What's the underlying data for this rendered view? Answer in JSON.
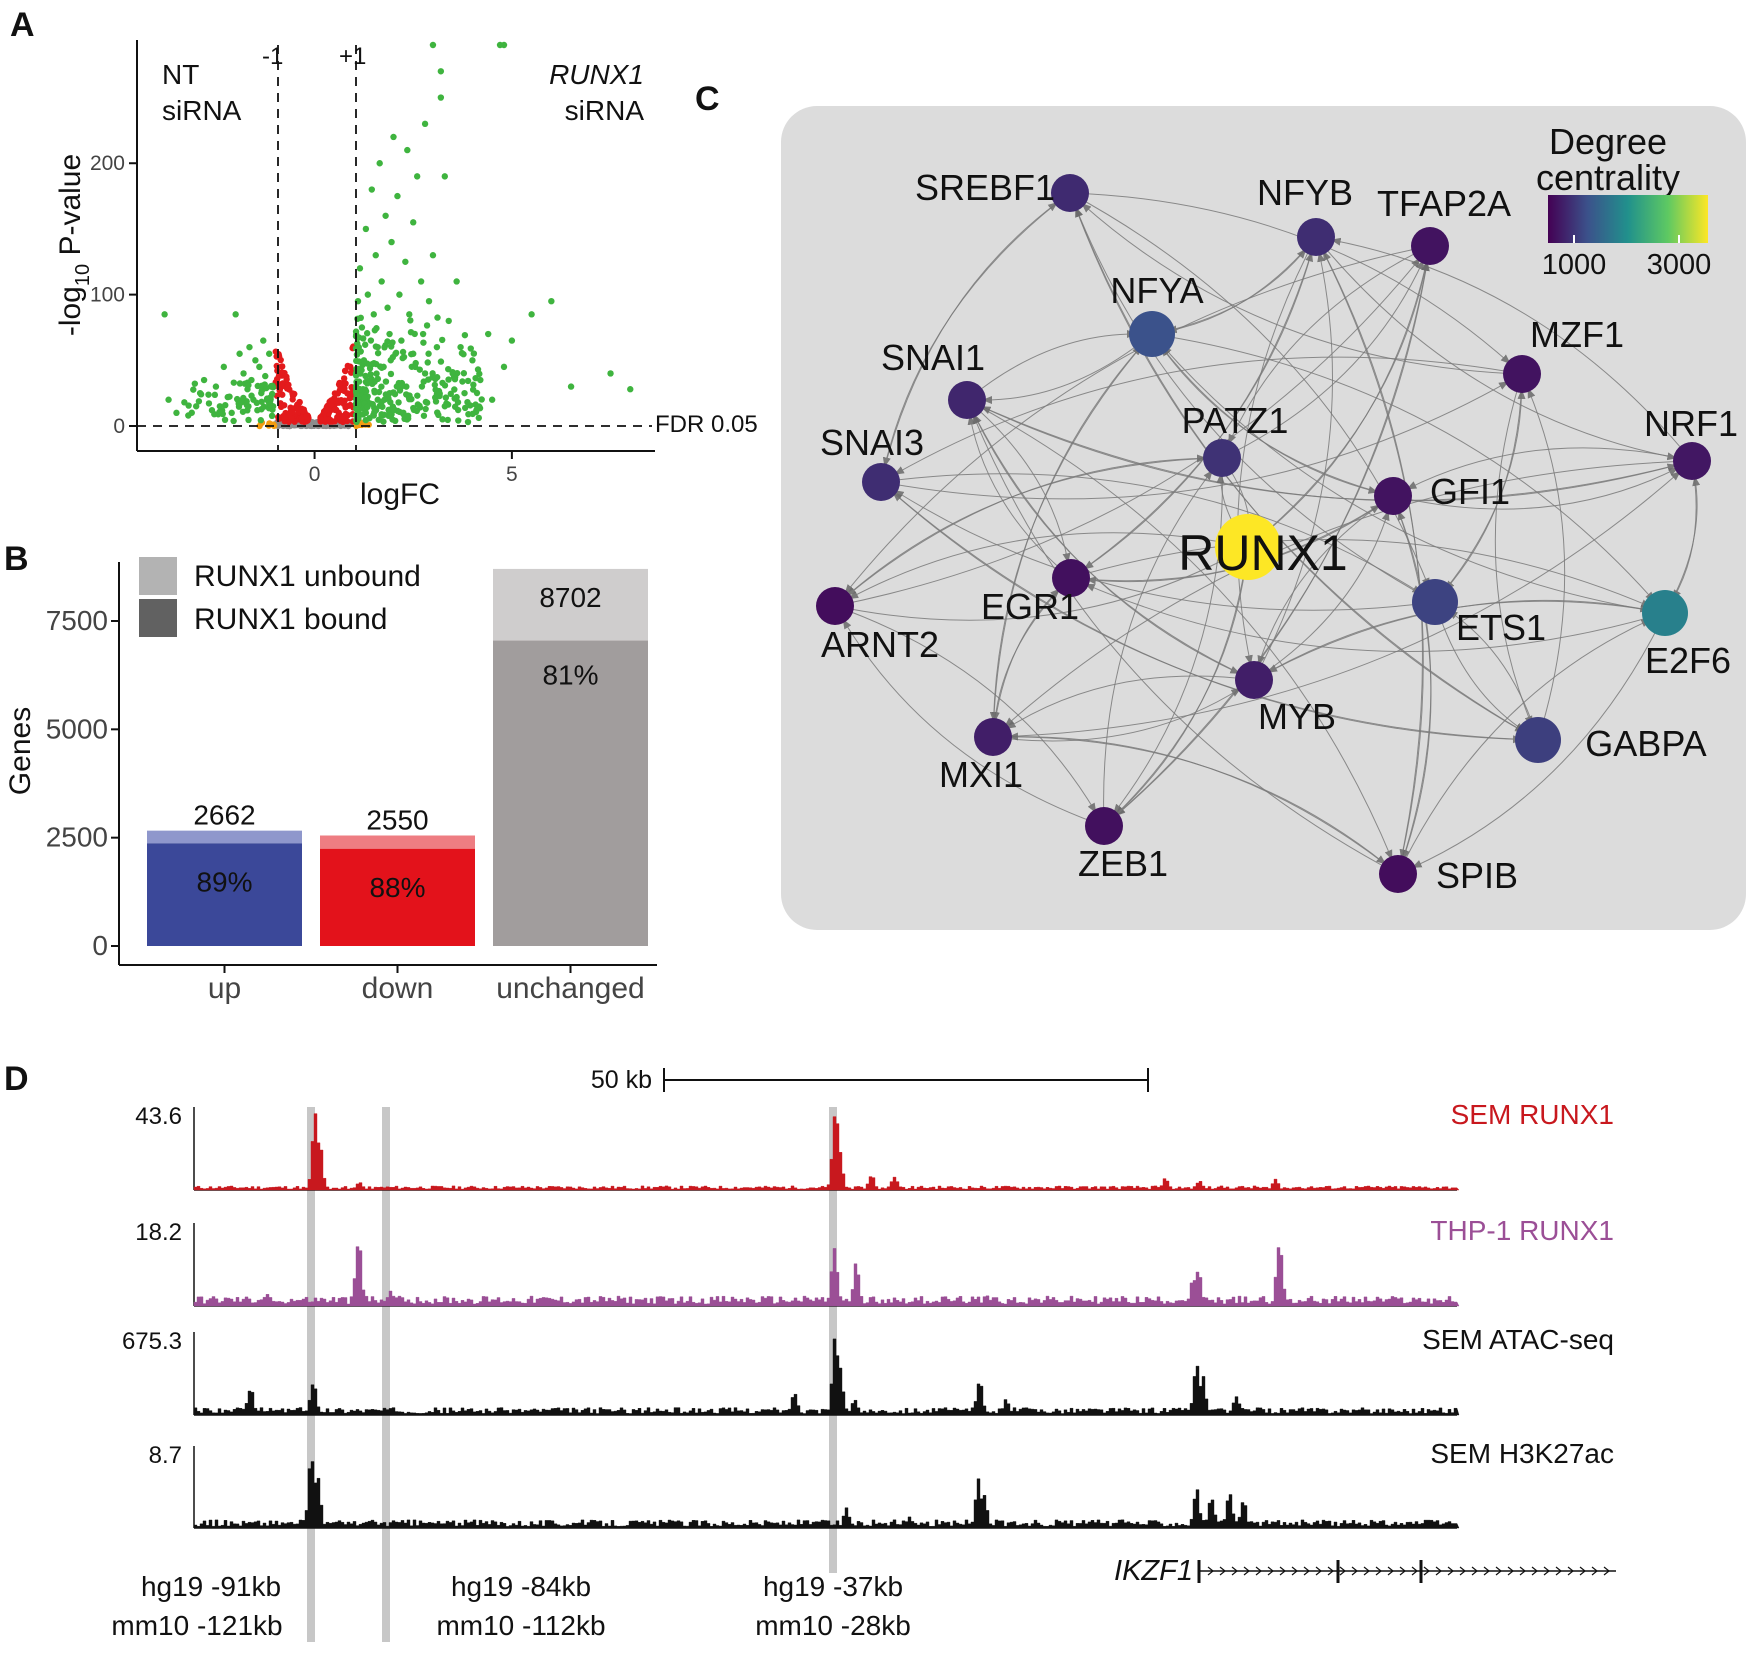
{
  "panels": {
    "a": "A",
    "b": "B",
    "c": "C",
    "d": "D"
  },
  "panel_a": {
    "left_label_1": "NT",
    "left_label_2": "siRNA",
    "right_label_1": "RUNX1",
    "right_label_2": "siRNA",
    "vline_left_label": "-1",
    "vline_right_label": "+1",
    "fdr_label": "FDR 0.05",
    "ylabel_prefix": "-log",
    "ylabel_sub": "10",
    "ylabel_suffix": " P-value",
    "xlabel": "logFC",
    "colors": {
      "significant_fc": "#3fb43f",
      "significant": "#e31a1c",
      "fc_only": "#f39c12",
      "ns": "#8c8c8c"
    }
  },
  "panel_b": {
    "ylabel": "Genes",
    "legend": [
      {
        "label": "RUNX1 unbound",
        "color": "#b3b3b3"
      },
      {
        "label": "RUNX1 bound",
        "color": "#616161"
      }
    ]
  },
  "panel_c": {
    "legend_title_1": "Degree",
    "legend_title_2": "centrality",
    "legend_min_label": "1000",
    "legend_max_label": "3000",
    "nodes": [
      {
        "id": "SREBF1",
        "degree": 1180
      },
      {
        "id": "NFYB",
        "degree": 1200
      },
      {
        "id": "TFAP2A",
        "degree": 1020
      },
      {
        "id": "NFYA",
        "degree": 1450
      },
      {
        "id": "MZF1",
        "degree": 1020
      },
      {
        "id": "SNAI1",
        "degree": 1150
      },
      {
        "id": "PATZ1",
        "degree": 1230
      },
      {
        "id": "NRF1",
        "degree": 1050
      },
      {
        "id": "SNAI3",
        "degree": 1200
      },
      {
        "id": "GFI1",
        "degree": 1020
      },
      {
        "id": "RUNX1",
        "degree": 3100
      },
      {
        "id": "EGR1",
        "degree": 1000
      },
      {
        "id": "ETS1",
        "degree": 1350
      },
      {
        "id": "E2F6",
        "degree": 1850
      },
      {
        "id": "ARNT2",
        "degree": 980
      },
      {
        "id": "MYB",
        "degree": 1100
      },
      {
        "id": "GABPA",
        "degree": 1320
      },
      {
        "id": "MXI1",
        "degree": 1100
      },
      {
        "id": "ZEB1",
        "degree": 1000
      },
      {
        "id": "SPIB",
        "degree": 980
      }
    ]
  },
  "panel_d": {
    "scale_label": "50 kb",
    "tracks": [
      {
        "name": "SEM RUNX1",
        "max_label": "43.6",
        "color": "#c8181e"
      },
      {
        "name": "THP-1 RUNX1",
        "max_label": "18.2",
        "color": "#9b4f96"
      },
      {
        "name": "SEM ATAC-seq",
        "max_label": "675.3",
        "color": "#111111"
      },
      {
        "name": "SEM H3K27ac",
        "max_label": "8.7",
        "color": "#111111"
      }
    ],
    "coords": [
      {
        "hg19": "hg19 -91kb",
        "mm10": "mm10 -121kb"
      },
      {
        "hg19": "hg19 -84kb",
        "mm10": "mm10 -112kb"
      },
      {
        "hg19": "hg19 -37kb",
        "mm10": "mm10 -28kb"
      }
    ],
    "gene_label": "IKZF1"
  },
  "chart_data": [
    {
      "type": "scatter",
      "title": "",
      "xlabel": "logFC",
      "ylabel": "-log10 P-value",
      "xlim": [
        -4.5,
        8.5
      ],
      "ylim": [
        0,
        290
      ],
      "x_ticks": [
        0,
        5
      ],
      "y_ticks": [
        0,
        100,
        200
      ],
      "thresholds": {
        "logfc": [
          -1,
          1
        ],
        "fdr": 0.05
      },
      "series": [
        {
          "name": "",
          "points": [
            [
              -3.8,
              85
            ],
            [
              -3.7,
              20
            ],
            [
              -3.5,
              10
            ],
            [
              -3.3,
              18
            ],
            [
              -3.2,
              8
            ],
            [
              -3.0,
              15
            ],
            [
              -2.9,
              25
            ],
            [
              -2.8,
              35
            ],
            [
              -2.6,
              12
            ],
            [
              -2.5,
              30
            ],
            [
              -2.4,
              15
            ],
            [
              -2.3,
              45
            ],
            [
              -2.2,
              22
            ],
            [
              -2.1,
              10
            ],
            [
              -2.0,
              85
            ],
            [
              -1.9,
              55
            ],
            [
              -1.85,
              18
            ],
            [
              -1.8,
              40
            ],
            [
              -1.7,
              28
            ],
            [
              -1.65,
              60
            ],
            [
              -1.6,
              35
            ],
            [
              -1.55,
              20
            ],
            [
              -1.5,
              50
            ],
            [
              -1.45,
              12
            ],
            [
              -1.4,
              45
            ],
            [
              -1.35,
              25
            ],
            [
              -1.3,
              65
            ],
            [
              -1.25,
              38
            ],
            [
              -1.2,
              20
            ],
            [
              -1.15,
              55
            ],
            [
              -1.1,
              30
            ],
            [
              -1.05,
              15
            ],
            [
              1.05,
              40
            ],
            [
              1.1,
              95
            ],
            [
              1.12,
              60
            ],
            [
              1.15,
              120
            ],
            [
              1.2,
              75
            ],
            [
              1.25,
              50
            ],
            [
              1.3,
              150
            ],
            [
              1.35,
              100
            ],
            [
              1.4,
              35
            ],
            [
              1.45,
              180
            ],
            [
              1.5,
              85
            ],
            [
              1.55,
              130
            ],
            [
              1.6,
              60
            ],
            [
              1.65,
              200
            ],
            [
              1.7,
              110
            ],
            [
              1.75,
              45
            ],
            [
              1.8,
              160
            ],
            [
              1.85,
              90
            ],
            [
              1.9,
              70
            ],
            [
              1.95,
              140
            ],
            [
              2.0,
              220
            ],
            [
              2.05,
              55
            ],
            [
              2.1,
              175
            ],
            [
              2.15,
              100
            ],
            [
              2.2,
              65
            ],
            [
              2.3,
              125
            ],
            [
              2.35,
              210
            ],
            [
              2.4,
              85
            ],
            [
              2.5,
              155
            ],
            [
              2.55,
              45
            ],
            [
              2.6,
              190
            ],
            [
              2.7,
              110
            ],
            [
              2.75,
              70
            ],
            [
              2.8,
              230
            ],
            [
              2.9,
              95
            ],
            [
              3.0,
              130
            ],
            [
              3.1,
              60
            ],
            [
              3.2,
              250
            ],
            [
              3.3,
              190
            ],
            [
              3.4,
              80
            ],
            [
              3.5,
              40
            ],
            [
              3.6,
              110
            ],
            [
              3.7,
              60
            ],
            [
              3.8,
              25
            ],
            [
              4.0,
              50
            ],
            [
              4.2,
              35
            ],
            [
              4.4,
              70
            ],
            [
              4.5,
              20
            ],
            [
              4.8,
              45
            ],
            [
              5.0,
              65
            ],
            [
              5.5,
              85
            ],
            [
              6.0,
              95
            ],
            [
              6.5,
              30
            ],
            [
              7.5,
              40
            ],
            [
              8.0,
              28
            ],
            [
              3.0,
              290
            ],
            [
              3.2,
              270
            ],
            [
              4.7,
              290
            ],
            [
              4.8,
              290
            ],
            [
              2.5,
              55
            ],
            [
              1.9,
              25
            ],
            [
              2.2,
              30
            ],
            [
              1.6,
              20
            ],
            [
              2.8,
              40
            ],
            [
              3.3,
              15
            ],
            [
              3.6,
              22
            ],
            [
              4.1,
              12
            ],
            [
              1.3,
              10
            ],
            [
              1.5,
              8
            ],
            [
              2.0,
              12
            ]
          ]
        }
      ]
    },
    {
      "type": "bar",
      "title": "",
      "xlabel": "",
      "ylabel": "Genes",
      "categories": [
        "up",
        "down",
        "unchanged"
      ],
      "ylim": [
        0,
        8750
      ],
      "y_ticks": [
        0,
        2500,
        5000,
        7500
      ],
      "totals": [
        2662,
        2550,
        8702
      ],
      "bound_percent": [
        89,
        88,
        81
      ],
      "total_labels": [
        "2662",
        "2550",
        "8702"
      ],
      "percent_labels": [
        "89%",
        "88%",
        "81%"
      ],
      "colors": {
        "bound": [
          "#3b4899",
          "#e3121b",
          "#a19d9d"
        ],
        "unbound": [
          "#8f97cc",
          "#ee7d82",
          "#cfcdcd"
        ]
      }
    }
  ]
}
